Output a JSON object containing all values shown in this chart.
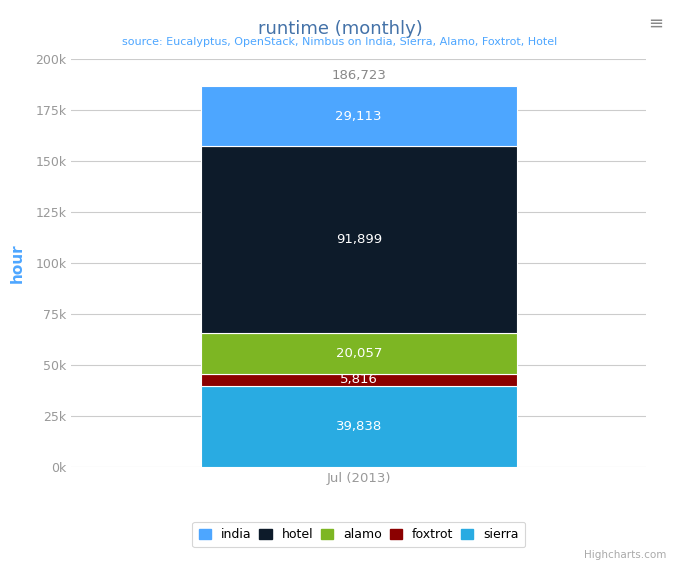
{
  "title": "runtime (monthly)",
  "subtitle": "source: Eucalyptus, OpenStack, Nimbus on India, Sierra, Alamo, Foxtrot, Hotel",
  "xlabel": "Jul (2013)",
  "ylabel": "hour",
  "total_label": "186,723",
  "ylim": [
    0,
    200000
  ],
  "yticks": [
    0,
    25000,
    50000,
    75000,
    100000,
    125000,
    150000,
    175000,
    200000
  ],
  "ytick_labels": [
    "0k",
    "25k",
    "50k",
    "75k",
    "100k",
    "125k",
    "150k",
    "175k",
    "200k"
  ],
  "segments": [
    {
      "name": "sierra",
      "value": 39838,
      "color": "#29ABE2",
      "label_color": "white"
    },
    {
      "name": "foxtrot",
      "value": 5816,
      "color": "#8B0000",
      "label_color": "white"
    },
    {
      "name": "alamo",
      "value": 20057,
      "color": "#7DB623",
      "label_color": "white"
    },
    {
      "name": "hotel",
      "value": 91899,
      "color": "#0D1B2A",
      "label_color": "white"
    },
    {
      "name": "india",
      "value": 29113,
      "color": "#4DA6FF",
      "label_color": "white"
    }
  ],
  "legend_order": [
    "india",
    "hotel",
    "alamo",
    "foxtrot",
    "sierra"
  ],
  "legend_colors": {
    "india": "#4DA6FF",
    "hotel": "#0D1B2A",
    "alamo": "#7DB623",
    "foxtrot": "#8B0000",
    "sierra": "#29ABE2"
  },
  "bar_width": 0.55,
  "background_color": "#FFFFFF",
  "plot_bg_color": "#FFFFFF",
  "grid_color": "#CCCCCC",
  "title_color": "#4472a8",
  "subtitle_color": "#4da6ff",
  "axis_label_color": "#4da6ff",
  "tick_color": "#999999",
  "watermark": "Highcharts.com"
}
